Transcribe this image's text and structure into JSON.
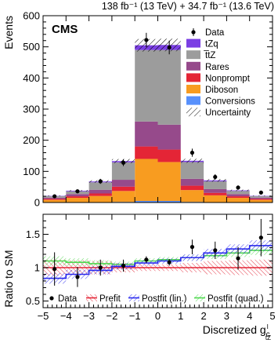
{
  "chart_data": [
    {
      "type": "stacked-bar",
      "lumi_label": "138 fb⁻¹ (13 TeV) + 34.7 fb⁻¹ (13.6 TeV)",
      "experiment": "CMS",
      "ylabel": "Events",
      "xlabel": "Discretized g",
      "xlabel_sub": "c",
      "xlabel_sup": "I",
      "xlabel_sub2": "tZ",
      "xlim": [
        -5,
        5
      ],
      "ylim": [
        0,
        600
      ],
      "x_ticks": [
        "−5",
        "−4",
        "−3",
        "−2",
        "−1",
        "0",
        "1",
        "2",
        "3",
        "4",
        "5"
      ],
      "y_ticks": [
        "0",
        "100",
        "200",
        "300",
        "400",
        "500",
        "600"
      ],
      "bin_edges": [
        -5,
        -4,
        -3,
        -2,
        -1,
        0,
        1,
        2,
        3,
        4,
        5
      ],
      "legend": [
        "Data",
        "tZq",
        "t̅tZ",
        "Rares",
        "Nonprompt",
        "Diboson",
        "Conversions",
        "Uncertainty"
      ],
      "colors": {
        "tZq": "#7b3fe4",
        "ttZ": "#9c9c9c",
        "Rares": "#964a8b",
        "Nonprompt": "#e42536",
        "Diboson": "#f89c20",
        "Conversions": "#5790fc"
      },
      "series": [
        {
          "name": "Conversions",
          "values": [
            0.5,
            1,
            1,
            2,
            5,
            5,
            2,
            1,
            1,
            0.5
          ]
        },
        {
          "name": "Diboson",
          "values": [
            8,
            14,
            20,
            35,
            135,
            125,
            38,
            22,
            14,
            8
          ]
        },
        {
          "name": "Nonprompt",
          "values": [
            3,
            5,
            8,
            14,
            40,
            40,
            14,
            8,
            5,
            3
          ]
        },
        {
          "name": "Rares",
          "values": [
            4,
            7,
            12,
            22,
            80,
            80,
            22,
            12,
            7,
            4
          ]
        },
        {
          "name": "t̅tZ",
          "values": [
            5,
            9,
            24,
            56,
            230,
            240,
            54,
            25,
            10,
            5
          ]
        },
        {
          "name": "tZq",
          "values": [
            1,
            2,
            2.5,
            4,
            15,
            16,
            4,
            3,
            2,
            1
          ]
        }
      ],
      "data": {
        "values": [
          20,
          36,
          68,
          128,
          522,
          498,
          160,
          82,
          48,
          32
        ],
        "errors": [
          5,
          6,
          8,
          11,
          23,
          22,
          13,
          9,
          7,
          6
        ]
      },
      "uncertainty_frac": [
        0.06,
        0.06,
        0.06,
        0.05,
        0.04,
        0.04,
        0.05,
        0.06,
        0.06,
        0.06
      ]
    },
    {
      "type": "line",
      "ylabel": "Ratio to SM",
      "xlim": [
        -5,
        5
      ],
      "ylim": [
        0.4,
        1.8
      ],
      "y_ticks": [
        "0.5",
        "1",
        "1.5"
      ],
      "ref_line": 1,
      "legend": [
        "Data",
        "Prefit",
        "Postfit (lin.)",
        "Postfit (quad.)"
      ],
      "colors": {
        "Prefit": "#e42536",
        "Postfit (lin.)": "#2a2aee",
        "Postfit (quad.)": "#4fd84f"
      },
      "data": {
        "values": [
          0.98,
          0.86,
          1.0,
          1.03,
          1.12,
          1.08,
          1.31,
          1.26,
          1.14,
          1.45
        ],
        "errors": [
          0.25,
          0.15,
          0.12,
          0.09,
          0.05,
          0.05,
          0.11,
          0.13,
          0.17,
          0.28
        ]
      },
      "prefit": {
        "values": [
          1,
          1,
          1,
          1,
          1,
          1,
          1,
          1,
          1,
          1
        ],
        "band": [
          0.12,
          0.11,
          0.1,
          0.07,
          0.05,
          0.05,
          0.07,
          0.1,
          0.11,
          0.12
        ]
      },
      "postfit_lin": {
        "values": [
          0.84,
          0.9,
          0.96,
          1.02,
          1.07,
          1.1,
          1.15,
          1.22,
          1.28,
          1.33
        ],
        "band": [
          0.08,
          0.07,
          0.06,
          0.05,
          0.04,
          0.04,
          0.05,
          0.06,
          0.07,
          0.08
        ]
      },
      "postfit_quad": {
        "values": [
          1.1,
          1.08,
          1.06,
          1.05,
          1.1,
          1.12,
          1.15,
          1.18,
          1.22,
          1.26
        ],
        "band": [
          0.07,
          0.06,
          0.05,
          0.04,
          0.04,
          0.04,
          0.04,
          0.05,
          0.06,
          0.07
        ]
      }
    }
  ]
}
